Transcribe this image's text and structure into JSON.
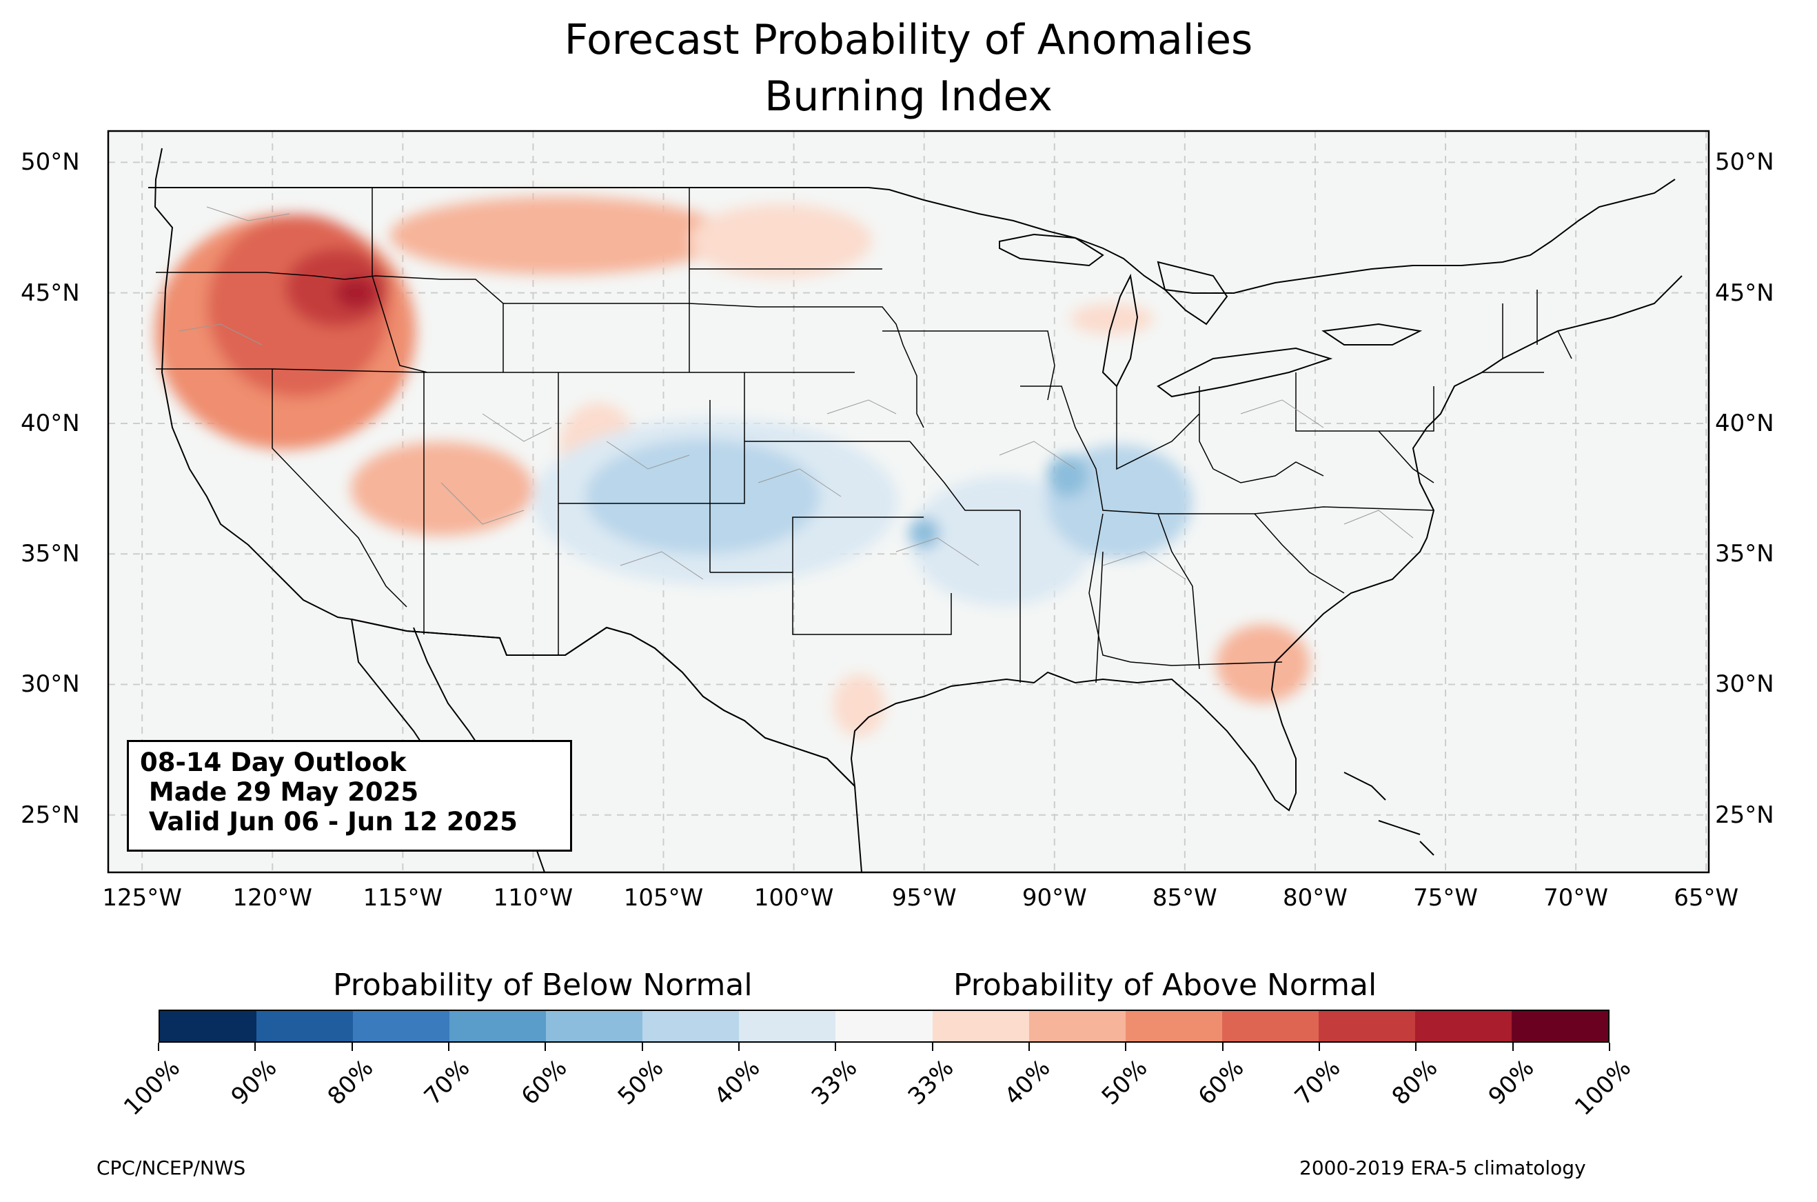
{
  "title": {
    "line1": "Forecast Probability of Anomalies",
    "line2": "Burning Index"
  },
  "axes": {
    "lat_labels": [
      "50°N",
      "45°N",
      "40°N",
      "35°N",
      "30°N",
      "25°N"
    ],
    "lat_values": [
      50,
      45,
      40,
      35,
      30,
      25
    ],
    "lon_labels": [
      "125°W",
      "120°W",
      "115°W",
      "110°W",
      "105°W",
      "100°W",
      "95°W",
      "90°W",
      "85°W",
      "80°W",
      "75°W",
      "70°W",
      "65°W"
    ],
    "lon_values": [
      -125,
      -120,
      -115,
      -110,
      -105,
      -100,
      -95,
      -90,
      -85,
      -80,
      -75,
      -70,
      -65
    ],
    "extent": {
      "lon": [
        -126.3,
        -64.9
      ],
      "lat": [
        22.8,
        51.2
      ]
    }
  },
  "info_box": {
    "line1": "08-14 Day Outlook",
    "line2": " Made 29 May 2025",
    "line3": " Valid Jun 06 - Jun 12 2025"
  },
  "colorbar": {
    "below_label": "Probability of Below Normal",
    "above_label": "Probability of Above Normal",
    "tick_labels": [
      "100%",
      "90%",
      "80%",
      "70%",
      "60%",
      "50%",
      "40%",
      "33%",
      "33%",
      "40%",
      "50%",
      "60%",
      "70%",
      "80%",
      "90%",
      "100%"
    ],
    "colors": [
      "#062d5e",
      "#1f5d9e",
      "#3a7bbd",
      "#5a9cca",
      "#8cbddc",
      "#b9d6ea",
      "#dce9f3",
      "#f6f6f6",
      "#fbdccd",
      "#f6b49a",
      "#ef8e6f",
      "#de6552",
      "#c43c3c",
      "#a91d2d",
      "#6b0120"
    ]
  },
  "map_colors": {
    "background": "#f4f6f5",
    "border": "#000000",
    "state_lines": "#222222",
    "county_lines": "#999999",
    "grid": "#cccccc"
  },
  "anomaly_regions": [
    {
      "category": "above-60",
      "lon": -119.5,
      "lat": 43.5,
      "rlon": 5.0,
      "rlat": 4.5
    },
    {
      "category": "above-70",
      "lon": -119.0,
      "lat": 44.5,
      "rlon": 3.5,
      "rlat": 3.5
    },
    {
      "category": "above-80",
      "lon": -117.5,
      "lat": 45.2,
      "rlon": 2.0,
      "rlat": 1.5
    },
    {
      "category": "above-90",
      "lon": -116.8,
      "lat": 45.0,
      "rlon": 0.8,
      "rlat": 0.6
    },
    {
      "category": "above-50",
      "lon": -109.0,
      "lat": 47.2,
      "rlon": 6.5,
      "rlat": 1.5
    },
    {
      "category": "above-40",
      "lon": -100.5,
      "lat": 47.0,
      "rlon": 3.5,
      "rlat": 1.4
    },
    {
      "category": "above-50",
      "lon": -113.5,
      "lat": 37.5,
      "rlon": 3.5,
      "rlat": 1.8
    },
    {
      "category": "above-40",
      "lon": -107.5,
      "lat": 39.0,
      "rlon": 1.5,
      "rlat": 1.8
    },
    {
      "category": "above-50",
      "lon": -82.0,
      "lat": 30.8,
      "rlon": 1.8,
      "rlat": 1.5
    },
    {
      "category": "above-40",
      "lon": -97.5,
      "lat": 29.2,
      "rlon": 1.0,
      "rlat": 1.2
    },
    {
      "category": "above-40",
      "lon": -87.8,
      "lat": 44.0,
      "rlon": 1.6,
      "rlat": 0.6
    },
    {
      "category": "below-40",
      "lon": -103.0,
      "lat": 37.0,
      "rlon": 7.0,
      "rlat": 3.2
    },
    {
      "category": "below-50",
      "lon": -103.5,
      "lat": 37.2,
      "rlon": 4.5,
      "rlat": 2.2
    },
    {
      "category": "below-40",
      "lon": -92.0,
      "lat": 35.5,
      "rlon": 3.5,
      "rlat": 2.5
    },
    {
      "category": "below-50",
      "lon": -87.5,
      "lat": 37.0,
      "rlon": 2.8,
      "rlat": 2.2
    },
    {
      "category": "below-60",
      "lon": -89.5,
      "lat": 38.0,
      "rlon": 0.8,
      "rlat": 0.8
    },
    {
      "category": "below-60",
      "lon": -95.0,
      "lat": 35.8,
      "rlon": 0.6,
      "rlat": 0.6
    }
  ],
  "footer": {
    "left": "CPC/NCEP/NWS",
    "right": "2000-2019 ERA-5 climatology"
  }
}
